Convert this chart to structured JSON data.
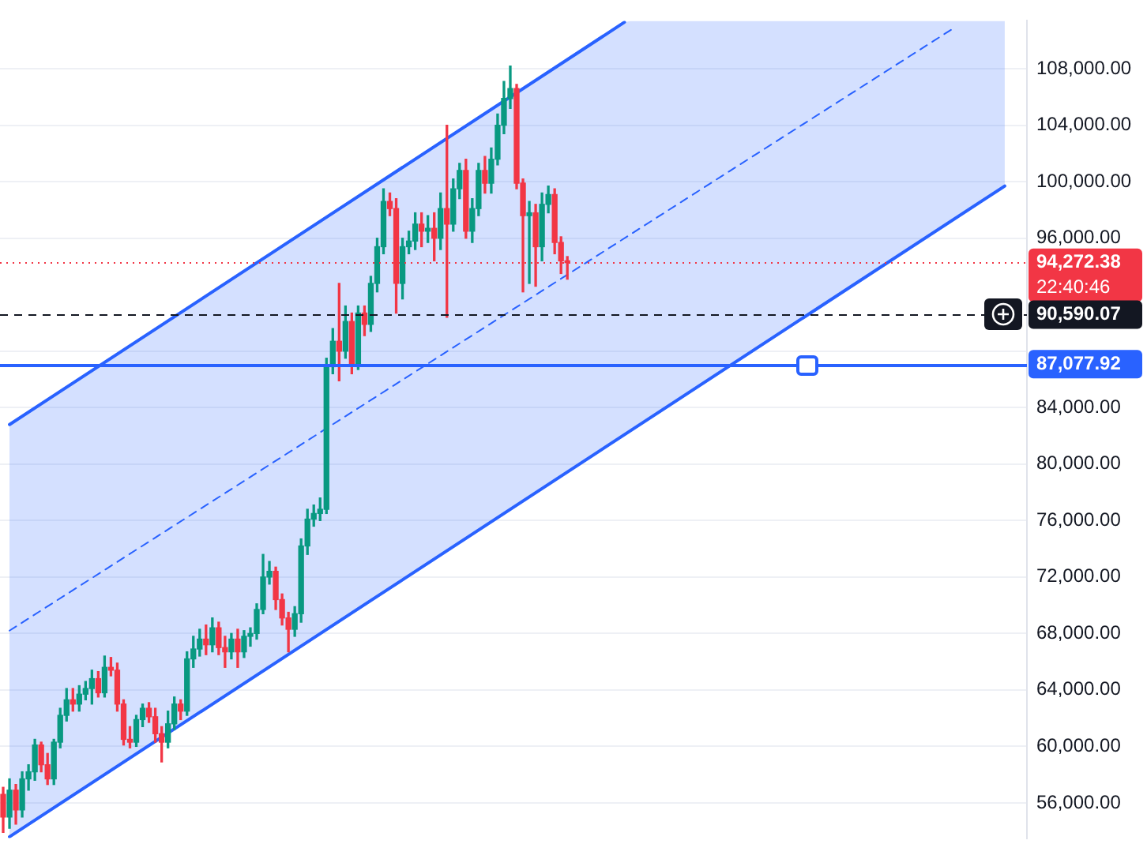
{
  "chart_data": {
    "type": "candlestick",
    "categories": [
      null,
      null,
      null,
      null,
      null,
      null,
      null,
      null,
      null,
      null,
      null,
      null,
      null,
      null,
      null,
      null,
      null,
      null,
      null,
      null,
      null,
      null,
      null,
      null,
      null,
      null,
      null,
      null,
      null,
      null,
      null,
      null,
      null,
      null,
      null,
      null,
      null,
      null,
      null,
      null,
      null,
      null,
      null,
      null,
      null,
      null,
      null,
      null,
      null,
      null,
      null,
      null,
      null,
      null,
      null,
      null,
      null,
      null,
      null,
      null,
      null,
      null,
      null,
      null,
      null,
      null,
      null,
      null,
      null,
      null,
      null,
      null,
      null,
      null,
      null,
      null,
      null,
      null,
      null,
      null,
      null,
      null,
      null,
      null,
      null,
      null,
      null,
      null,
      null,
      null,
      null,
      null,
      null,
      null,
      null,
      null,
      null,
      null,
      null,
      null,
      null,
      null,
      null,
      null,
      null,
      null,
      null,
      null,
      null,
      null,
      null,
      null,
      null,
      null,
      null,
      null,
      null,
      null,
      null,
      null,
      null,
      null,
      null,
      null,
      null,
      null,
      null,
      null,
      null,
      null,
      null,
      null,
      null,
      null,
      null,
      null,
      null,
      null,
      null,
      null,
      null,
      null,
      null,
      null,
      null,
      null,
      null,
      null,
      null,
      null,
      null,
      null,
      null,
      null,
      null,
      null,
      null,
      null,
      null,
      null,
      null,
      null
    ],
    "ohlc": [
      [
        56600,
        57100,
        53900,
        55000
      ],
      [
        55000,
        57700,
        54200,
        56900
      ],
      [
        56900,
        57300,
        54500,
        55500
      ],
      [
        55500,
        58200,
        55000,
        57700
      ],
      [
        57700,
        58700,
        56900,
        58200
      ],
      [
        58200,
        60500,
        57600,
        60100
      ],
      [
        60100,
        60300,
        58200,
        58700
      ],
      [
        58700,
        59500,
        57300,
        57700
      ],
      [
        57700,
        60500,
        57300,
        60300
      ],
      [
        60300,
        62700,
        59900,
        62200
      ],
      [
        62200,
        64100,
        61800,
        63300
      ],
      [
        63300,
        64100,
        62500,
        63000
      ],
      [
        63000,
        64300,
        62500,
        63700
      ],
      [
        63700,
        64600,
        63300,
        64100
      ],
      [
        64100,
        65400,
        63000,
        64800
      ],
      [
        64800,
        65300,
        63500,
        63800
      ],
      [
        63800,
        66400,
        63500,
        65600
      ],
      [
        65600,
        66300,
        65000,
        65400
      ],
      [
        65400,
        65900,
        62500,
        63000
      ],
      [
        63000,
        63300,
        60100,
        60500
      ],
      [
        60500,
        61400,
        59900,
        60300
      ],
      [
        60300,
        62200,
        60000,
        61900
      ],
      [
        61900,
        63000,
        61400,
        62700
      ],
      [
        62700,
        63100,
        61700,
        62100
      ],
      [
        62100,
        62700,
        60300,
        60900
      ],
      [
        60900,
        61400,
        58900,
        60300
      ],
      [
        60300,
        62500,
        59900,
        61600
      ],
      [
        61600,
        63500,
        61200,
        63000
      ],
      [
        63000,
        63300,
        61900,
        62500
      ],
      [
        62500,
        66700,
        62200,
        66200
      ],
      [
        66200,
        67800,
        65600,
        66900
      ],
      [
        66900,
        68300,
        66400,
        67600
      ],
      [
        67600,
        68600,
        66500,
        67200
      ],
      [
        67200,
        69100,
        66700,
        68400
      ],
      [
        68400,
        68800,
        66500,
        67000
      ],
      [
        67000,
        67800,
        65600,
        66700
      ],
      [
        66700,
        68000,
        66200,
        67600
      ],
      [
        67600,
        68300,
        65600,
        66700
      ],
      [
        66700,
        68200,
        66300,
        67800
      ],
      [
        67800,
        68400,
        67100,
        68000
      ],
      [
        68000,
        70100,
        67600,
        69700
      ],
      [
        69700,
        73600,
        69400,
        72000
      ],
      [
        72000,
        73100,
        71500,
        72400
      ],
      [
        72400,
        72700,
        69700,
        70400
      ],
      [
        70400,
        70800,
        68600,
        69100
      ],
      [
        69100,
        69500,
        66700,
        68300
      ],
      [
        68300,
        69900,
        67800,
        69400
      ],
      [
        69400,
        74700,
        68800,
        74200
      ],
      [
        74200,
        76800,
        73600,
        76100
      ],
      [
        76100,
        77100,
        75600,
        76500
      ],
      [
        76500,
        77600,
        76000,
        76800
      ],
      [
        76800,
        87500,
        76500,
        86900
      ],
      [
        86900,
        89600,
        86400,
        88700
      ],
      [
        88700,
        92800,
        85900,
        88000
      ],
      [
        88000,
        91200,
        87500,
        90100
      ],
      [
        90100,
        90700,
        86400,
        87100
      ],
      [
        87100,
        91200,
        86700,
        90700
      ],
      [
        90700,
        91200,
        89100,
        89900
      ],
      [
        89900,
        93300,
        89400,
        92800
      ],
      [
        92800,
        96000,
        92200,
        95400
      ],
      [
        95400,
        99500,
        94900,
        98600
      ],
      [
        98600,
        99200,
        97600,
        98100
      ],
      [
        98100,
        98800,
        90700,
        92800
      ],
      [
        92800,
        96000,
        91700,
        95400
      ],
      [
        95400,
        96500,
        94900,
        95800
      ],
      [
        95800,
        97800,
        95200,
        97000
      ],
      [
        97000,
        97800,
        95400,
        96500
      ],
      [
        96500,
        97600,
        95700,
        96700
      ],
      [
        96700,
        97800,
        94400,
        96000
      ],
      [
        96000,
        99200,
        95200,
        98100
      ],
      [
        98100,
        104000,
        90400,
        97000
      ],
      [
        97000,
        100200,
        96500,
        99500
      ],
      [
        99500,
        101300,
        98800,
        100800
      ],
      [
        100800,
        101600,
        96000,
        96500
      ],
      [
        96500,
        98800,
        95700,
        98100
      ],
      [
        98100,
        101300,
        97600,
        100800
      ],
      [
        100800,
        101800,
        99200,
        99900
      ],
      [
        99900,
        102400,
        99200,
        101600
      ],
      [
        101600,
        104800,
        101200,
        104000
      ],
      [
        104000,
        107100,
        103400,
        105900
      ],
      [
        105900,
        108200,
        105200,
        106600
      ],
      [
        106600,
        106900,
        99500,
        99900
      ],
      [
        99900,
        100200,
        92200,
        97600
      ],
      [
        97600,
        98600,
        92800,
        97800
      ],
      [
        97800,
        98400,
        92600,
        95400
      ],
      [
        95400,
        99200,
        94400,
        98400
      ],
      [
        98400,
        99700,
        97800,
        99100
      ],
      [
        99100,
        99500,
        94900,
        95700
      ],
      [
        95700,
        96100,
        93500,
        94400
      ],
      [
        94400,
        94700,
        93100,
        94272.38
      ],
      null,
      null,
      null,
      null,
      null,
      null,
      null,
      null,
      null,
      null,
      null,
      null,
      null,
      null,
      null,
      null,
      null,
      null,
      null,
      null,
      null,
      null,
      null,
      null,
      null,
      null,
      null,
      null,
      null,
      null,
      null,
      null,
      null,
      null,
      null,
      null,
      null,
      null,
      null,
      null,
      null,
      null,
      null,
      null,
      null,
      null,
      null,
      null,
      null,
      null,
      null,
      null,
      null,
      null,
      null,
      null,
      null,
      null,
      null,
      null,
      null,
      null,
      null,
      null,
      null,
      null,
      null,
      null,
      null,
      null,
      null,
      null
    ],
    "colors": [
      "#f23645",
      "#089981",
      "#f23645",
      "#089981",
      "#089981",
      "#089981",
      "#f23645",
      "#f23645",
      "#089981",
      "#089981",
      "#089981",
      "#f23645",
      "#089981",
      "#089981",
      "#089981",
      "#f23645",
      "#089981",
      "#f23645",
      "#f23645",
      "#f23645",
      "#f23645",
      "#089981",
      "#089981",
      "#f23645",
      "#f23645",
      "#f23645",
      "#089981",
      "#089981",
      "#f23645",
      "#089981",
      "#089981",
      "#089981",
      "#f23645",
      "#089981",
      "#f23645",
      "#f23645",
      "#089981",
      "#f23645",
      "#089981",
      "#089981",
      "#089981",
      "#089981",
      "#089981",
      "#f23645",
      "#f23645",
      "#f23645",
      "#089981",
      "#089981",
      "#089981",
      "#089981",
      "#089981",
      "#089981",
      "#089981",
      "#f23645",
      "#089981",
      "#f23645",
      "#089981",
      "#f23645",
      "#089981",
      "#089981",
      "#089981",
      "#f23645",
      "#f23645",
      "#089981",
      "#089981",
      "#089981",
      "#f23645",
      "#089981",
      "#f23645",
      "#089981",
      "#f23645",
      "#089981",
      "#089981",
      "#f23645",
      "#089981",
      "#089981",
      "#f23645",
      "#089981",
      "#089981",
      "#089981",
      "#089981",
      "#f23645",
      "#f23645",
      "#089981",
      "#f23645",
      "#089981",
      "#089981",
      "#f23645",
      "#f23645",
      "#f23645",
      null,
      null,
      null,
      null,
      null,
      null,
      null,
      null,
      null,
      null,
      null,
      null,
      null,
      null,
      null,
      null,
      null,
      null,
      null,
      null,
      null,
      null,
      null,
      null,
      null,
      null,
      null,
      null,
      null,
      null,
      null,
      null,
      null,
      null,
      null,
      null,
      null,
      null,
      null,
      null,
      null,
      null,
      null,
      null,
      null,
      null,
      null,
      null,
      null,
      null,
      null,
      null,
      null,
      null,
      null,
      null,
      null,
      null,
      null,
      null,
      null,
      null,
      null,
      null,
      null,
      null,
      null,
      null,
      null,
      null,
      null,
      null
    ],
    "series": [
      {
        "type": "line",
        "color": "#2962ff",
        "line_style": "solid",
        "values": [
          null,
          82800,
          null,
          null,
          null,
          null,
          null,
          null,
          null,
          null,
          null,
          null,
          null,
          null,
          null,
          null,
          null,
          null,
          null,
          null,
          null,
          null,
          null,
          null,
          null,
          null,
          null,
          null,
          null,
          null,
          null,
          null,
          null,
          null,
          null,
          null,
          null,
          null,
          null,
          null,
          null,
          null,
          null,
          null,
          null,
          null,
          null,
          null,
          null,
          null,
          null,
          null,
          null,
          null,
          null,
          null,
          null,
          null,
          null,
          null,
          null,
          null,
          null,
          null,
          null,
          null,
          null,
          null,
          null,
          null,
          null,
          null,
          null,
          null,
          null,
          null,
          null,
          null,
          null,
          null,
          null,
          null,
          null,
          null,
          null,
          null,
          null,
          null,
          null,
          null,
          null,
          null,
          null,
          null,
          null,
          null,
          null,
          null,
          111300,
          null,
          null,
          null,
          null,
          null,
          null,
          null,
          null,
          null,
          null,
          null,
          null,
          null,
          null,
          null,
          null,
          null,
          null,
          null,
          null,
          null,
          null,
          null,
          null,
          null,
          null,
          null,
          null,
          null,
          null,
          null,
          null,
          null,
          null,
          null,
          null,
          null,
          null,
          null,
          null,
          null,
          null,
          null,
          null,
          null,
          null,
          null,
          null,
          null,
          null,
          null,
          null,
          null,
          null,
          null,
          null,
          null,
          null,
          null,
          null,
          null,
          null,
          null
        ]
      },
      {
        "type": "line",
        "color": "#2962ff",
        "line_style": "solid",
        "values": [
          null,
          53600,
          null,
          null,
          null,
          null,
          null,
          null,
          null,
          null,
          null,
          null,
          null,
          null,
          null,
          null,
          null,
          null,
          null,
          null,
          null,
          null,
          null,
          null,
          null,
          null,
          null,
          null,
          null,
          null,
          null,
          null,
          null,
          null,
          null,
          null,
          null,
          null,
          null,
          null,
          null,
          null,
          null,
          null,
          null,
          null,
          null,
          null,
          null,
          null,
          null,
          null,
          null,
          null,
          null,
          null,
          null,
          null,
          null,
          null,
          null,
          null,
          null,
          null,
          null,
          null,
          null,
          null,
          null,
          null,
          null,
          null,
          null,
          null,
          null,
          null,
          null,
          null,
          null,
          null,
          null,
          null,
          null,
          null,
          null,
          null,
          null,
          null,
          null,
          null,
          null,
          null,
          null,
          null,
          null,
          null,
          null,
          null,
          null,
          null,
          null,
          null,
          null,
          null,
          null,
          null,
          null,
          null,
          null,
          null,
          null,
          null,
          null,
          null,
          null,
          null,
          null,
          null,
          null,
          null,
          null,
          null,
          null,
          null,
          null,
          null,
          null,
          null,
          null,
          null,
          null,
          null,
          null,
          null,
          null,
          null,
          null,
          null,
          null,
          null,
          null,
          null,
          null,
          null,
          null,
          null,
          null,
          null,
          null,
          null,
          null,
          null,
          null,
          null,
          null,
          null,
          null,
          null,
          99700,
          null,
          null,
          null
        ]
      },
      {
        "type": "line",
        "color": "#2962ff",
        "line_style": "dashed",
        "values": [
          null,
          68200,
          null,
          null,
          null,
          null,
          null,
          null,
          null,
          null,
          null,
          null,
          null,
          null,
          null,
          null,
          null,
          null,
          null,
          null,
          null,
          null,
          null,
          null,
          null,
          null,
          null,
          null,
          null,
          null,
          null,
          null,
          null,
          null,
          null,
          null,
          null,
          null,
          null,
          null,
          null,
          null,
          null,
          null,
          null,
          null,
          null,
          null,
          null,
          null,
          null,
          null,
          null,
          null,
          null,
          null,
          null,
          null,
          null,
          null,
          null,
          null,
          null,
          null,
          null,
          null,
          null,
          null,
          null,
          null,
          null,
          null,
          null,
          null,
          null,
          null,
          null,
          null,
          null,
          null,
          null,
          null,
          null,
          null,
          null,
          null,
          null,
          null,
          null,
          null,
          null,
          null,
          null,
          null,
          null,
          null,
          null,
          null,
          null,
          null,
          null,
          null,
          null,
          null,
          null,
          null,
          null,
          null,
          null,
          null,
          null,
          null,
          null,
          null,
          null,
          null,
          null,
          null,
          null,
          null,
          null,
          null,
          null,
          null,
          null,
          null,
          null,
          null,
          null,
          null,
          null,
          null,
          null,
          null,
          null,
          null,
          null,
          null,
          null,
          null,
          null,
          null,
          null,
          null,
          null,
          null,
          null,
          null,
          null,
          null,
          110900,
          null,
          null,
          null,
          null,
          null,
          null,
          null,
          null,
          null,
          null,
          null
        ],
        "lower": [
          null,
          53600,
          53900,
          54200,
          54500,
          54800,
          55100,
          55400,
          55700,
          56000,
          56200,
          56500,
          56800,
          57100,
          57400,
          57700,
          58000,
          58300,
          58600,
          58900,
          59200,
          59500,
          59800,
          60100,
          60400,
          60600,
          60900,
          61200,
          61500,
          61800,
          62100,
          62400,
          62700,
          63000,
          63300,
          63600,
          63900,
          64200,
          64500,
          64800,
          65100,
          65300,
          65600,
          65900,
          66200,
          66500,
          66800,
          67100,
          67400,
          67700,
          68000,
          68300,
          68600,
          68900,
          69200,
          69500,
          69800,
          70000,
          70300,
          70600,
          70900,
          71200,
          71500,
          71800,
          72100,
          72400,
          72700,
          73000,
          73300,
          73600,
          73900,
          74200,
          74500,
          74700,
          75000,
          75300,
          75600,
          75900,
          76200,
          76500,
          76800,
          77100,
          77400,
          77700,
          78000,
          78300,
          78600,
          78900,
          79200,
          79400,
          79700,
          80000,
          80300,
          80600,
          80900,
          81200,
          81500,
          81800,
          82100,
          82400,
          82700,
          83000,
          83300,
          83600,
          83900,
          84100,
          84400,
          84700,
          85000,
          85300,
          85600,
          85900,
          86200,
          86500,
          86800,
          87100,
          87400,
          87700,
          88000,
          88300,
          88600,
          88800,
          89100,
          89400,
          89700,
          90000,
          90300,
          90600,
          90900,
          91200,
          91500,
          91800,
          92100,
          92400,
          92700,
          93000,
          93200,
          93500,
          93800,
          94100,
          94400,
          94700,
          95000,
          95300,
          95600,
          95900,
          96200,
          96500,
          96800,
          97100,
          97400,
          97700,
          97900,
          98200,
          98500,
          98800,
          99100,
          99400,
          99700,
          null,
          null,
          null
        ],
        "upper": [
          null,
          82800,
          83100,
          83400,
          83700,
          84000,
          84300,
          84600,
          84900,
          85200,
          85400,
          85700,
          86000,
          86300,
          86600,
          86900,
          87200,
          87500,
          87800,
          88100,
          88400,
          88700,
          89000,
          89300,
          89600,
          89800,
          90100,
          90400,
          90700,
          91000,
          91300,
          91600,
          91900,
          92200,
          92500,
          92800,
          93100,
          93400,
          93700,
          94000,
          94300,
          94500,
          94800,
          95100,
          95400,
          95700,
          96000,
          96300,
          96600,
          96900,
          97200,
          97500,
          97800,
          98100,
          98400,
          98700,
          99000,
          99200,
          99500,
          99800,
          100100,
          100400,
          100700,
          101000,
          101300,
          101600,
          101900,
          102200,
          102500,
          102800,
          103100,
          103400,
          103700,
          103900,
          104200,
          104500,
          104800,
          105100,
          105400,
          105700,
          106000,
          106300,
          106600,
          106900,
          107200,
          107500,
          107800,
          108100,
          108400,
          108600,
          108900,
          109200,
          109500,
          109800,
          110100,
          110400,
          110700,
          111000,
          111300,
          111400,
          111400,
          111400,
          111400,
          111400,
          111400,
          111400,
          111400,
          111400,
          111400,
          111400,
          111400,
          111400,
          111400,
          111400,
          111400,
          111400,
          111400,
          111400,
          111400,
          111400,
          111400,
          111400,
          111400,
          111400,
          111400,
          111400,
          111400,
          111400,
          111400,
          111400,
          111400,
          111400,
          111400,
          111400,
          111400,
          111400,
          111400,
          111400,
          111400,
          111400,
          111400,
          111400,
          111400,
          111400,
          111400,
          111400,
          111400,
          111400,
          111400,
          111400,
          111400,
          111400,
          111400,
          111400,
          111400,
          111400,
          111400,
          111400,
          111400,
          null,
          null,
          null
        ]
      }
    ],
    "ref_lines": [
      {
        "axis": "y",
        "value": 87077.92,
        "label": "87,077.92",
        "color": "#2962ff",
        "line_style": "solid"
      },
      {
        "axis": "y",
        "value": 94272.38,
        "label": "94,272.38",
        "color": "#f23645",
        "line_style": "dotted"
      },
      {
        "axis": "y",
        "value": 90590.07,
        "label": "90,590.07",
        "color": "#131722",
        "line_style": "dashed"
      }
    ],
    "annotations": [
      "22:40:46"
    ],
    "ylim": [
      53500,
      111400
    ],
    "yticks": [
      {
        "value": 56000,
        "label": "56,000.00"
      },
      {
        "value": 60000,
        "label": "60,000.00"
      },
      {
        "value": 64000,
        "label": "64,000.00"
      },
      {
        "value": 68000,
        "label": "68,000.00"
      },
      {
        "value": 72000,
        "label": "72,000.00"
      },
      {
        "value": 76000,
        "label": "76,000.00"
      },
      {
        "value": 80000,
        "label": "80,000.00"
      },
      {
        "value": 84000,
        "label": "84,000.00"
      },
      {
        "value": 88000,
        "label": null
      },
      {
        "value": 96000,
        "label": "96,000.00"
      },
      {
        "value": 100000,
        "label": "100,000.00"
      },
      {
        "value": 104000,
        "label": "104,000.00"
      },
      {
        "value": 108000,
        "label": "108,000.00"
      }
    ],
    "grid": "y",
    "tick_labels": "y"
  }
}
